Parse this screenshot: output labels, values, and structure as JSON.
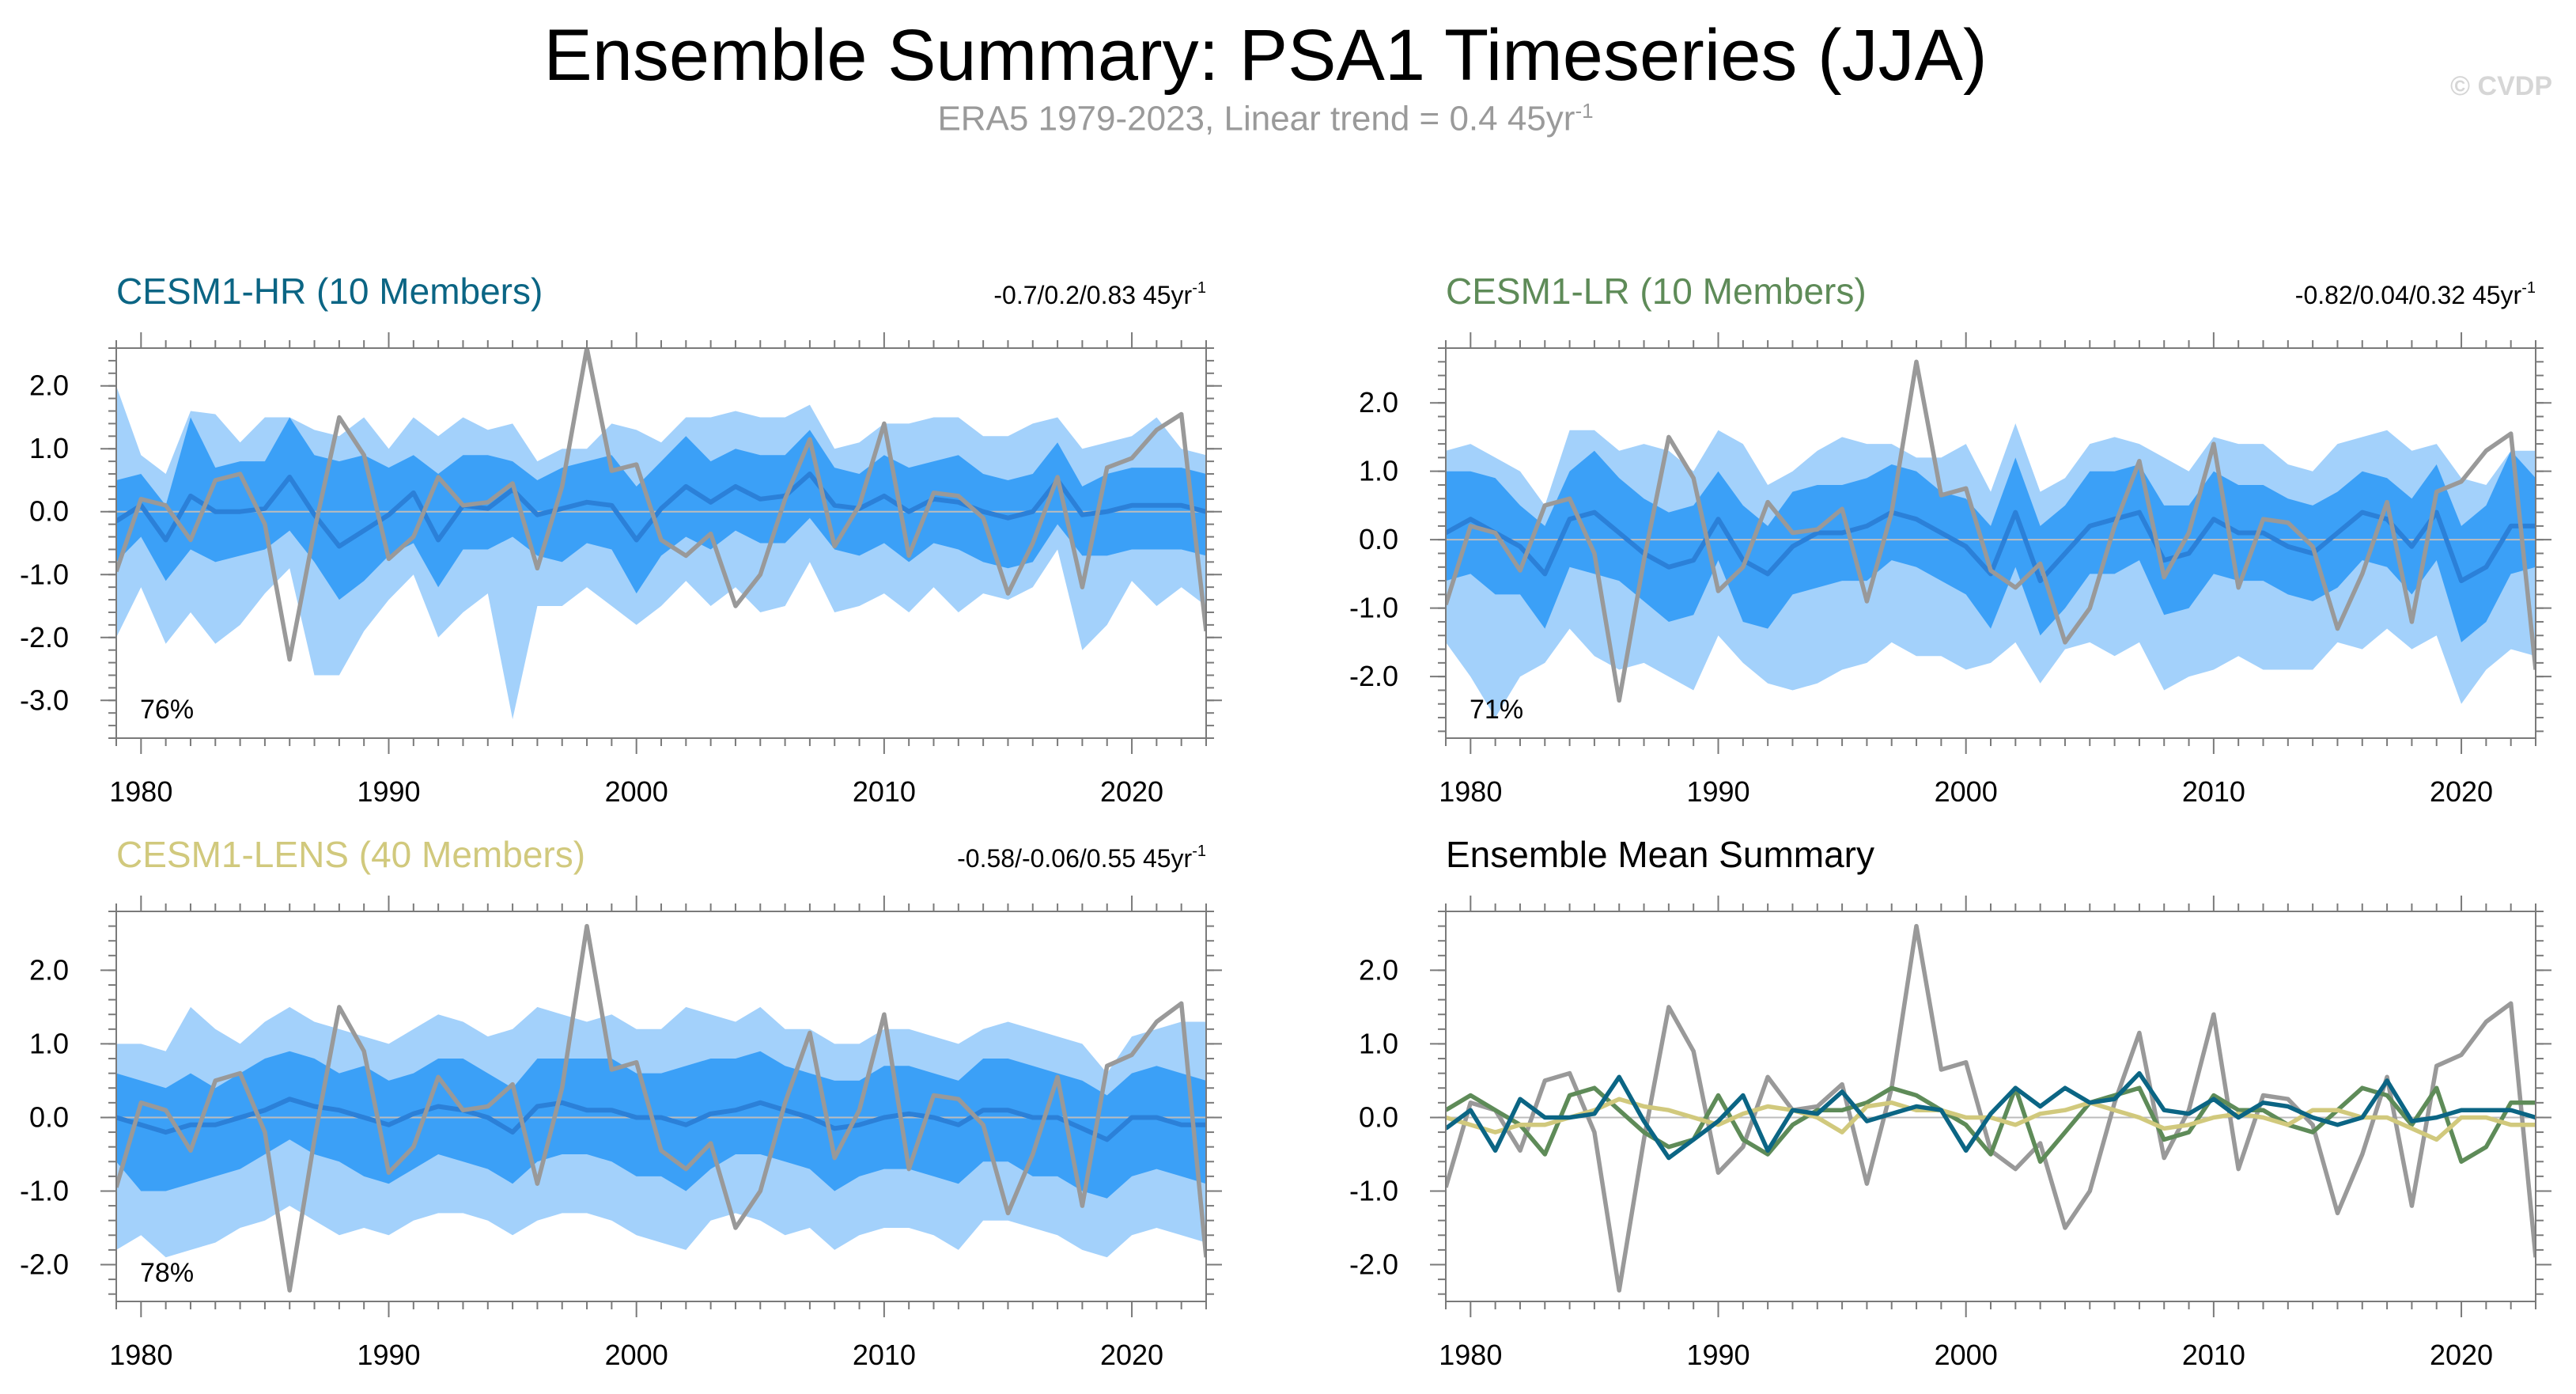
{
  "title": "Ensemble Summary: PSA1 Timeseries (JJA)",
  "subtitle": {
    "text": "ERA5 1979-2023, Linear trend = 0.4 45yr",
    "sup": "-1"
  },
  "watermark": "© CVDP",
  "colors": {
    "observations": "#999999",
    "band_outer": "#a3d1fb",
    "band_inner": "#3ba0f7",
    "ens_mean": "#2b80d8",
    "zero_line": "#bcbcbc",
    "cesm1_hr": "#0b6584",
    "cesm1_lr": "#5e8b58",
    "cesm1_lens": "#d1c97d"
  },
  "chart_data": [
    {
      "type": "area",
      "panel": "CESM1-HR",
      "title": "CESM1-HR (10 Members)",
      "title_color": "#0b6584",
      "trend_label": "-0.7/0.2/0.83 45yr",
      "trend_sup": "-1",
      "percent_label": "76%",
      "xlim": [
        1979,
        2023
      ],
      "ylim": [
        -3.6,
        2.6
      ],
      "xticks": [
        1980,
        1990,
        2000,
        2010,
        2020
      ],
      "yticks": [
        2.0,
        1.0,
        0.0,
        -1.0,
        -2.0,
        -3.0
      ],
      "ytick_labels": [
        "2.0",
        "1.0",
        "0.0",
        "-1.0",
        "-2.0",
        "-3.0"
      ],
      "x_start": 1979,
      "observations": [
        -0.95,
        0.2,
        0.1,
        -0.45,
        0.5,
        0.6,
        -0.2,
        -2.35,
        -0.3,
        1.5,
        0.9,
        -0.75,
        -0.4,
        0.55,
        0.1,
        0.15,
        0.45,
        -0.9,
        0.4,
        2.6,
        0.65,
        0.75,
        -0.45,
        -0.7,
        -0.35,
        -1.5,
        -1.0,
        0.2,
        1.15,
        -0.55,
        0.1,
        1.4,
        -0.7,
        0.3,
        0.25,
        -0.1,
        -1.3,
        -0.5,
        0.55,
        -1.2,
        0.7,
        0.85,
        1.3,
        1.55,
        -1.9
      ],
      "ens_mean": [
        -0.15,
        0.1,
        -0.45,
        0.25,
        0.0,
        0.0,
        0.05,
        0.55,
        -0.05,
        -0.55,
        -0.3,
        -0.05,
        0.3,
        -0.45,
        0.1,
        0.05,
        0.35,
        -0.05,
        0.05,
        0.15,
        0.1,
        -0.45,
        0.05,
        0.4,
        0.15,
        0.4,
        0.2,
        0.25,
        0.6,
        0.1,
        0.05,
        0.25,
        0.0,
        0.2,
        0.15,
        0.0,
        -0.1,
        0.0,
        0.5,
        -0.05,
        0.0,
        0.1,
        0.1,
        0.1,
        0.0
      ],
      "inner_upper": [
        0.5,
        0.6,
        0.1,
        1.5,
        0.7,
        0.8,
        0.8,
        1.5,
        0.9,
        0.8,
        0.9,
        0.7,
        0.9,
        0.6,
        0.9,
        0.9,
        0.8,
        0.5,
        0.7,
        0.8,
        0.9,
        0.4,
        0.8,
        1.2,
        0.8,
        1.0,
        0.9,
        0.9,
        1.3,
        0.7,
        0.6,
        0.9,
        0.7,
        0.8,
        0.9,
        0.6,
        0.5,
        0.6,
        1.1,
        0.4,
        0.6,
        0.7,
        0.7,
        0.7,
        0.6
      ],
      "inner_lower": [
        -0.8,
        -0.4,
        -1.1,
        -0.6,
        -0.8,
        -0.7,
        -0.6,
        -0.3,
        -0.8,
        -1.4,
        -1.1,
        -0.7,
        -0.5,
        -1.2,
        -0.6,
        -0.6,
        -0.4,
        -0.7,
        -0.8,
        -0.5,
        -0.6,
        -1.3,
        -0.7,
        -0.4,
        -0.6,
        -0.3,
        -0.5,
        -0.5,
        -0.1,
        -0.6,
        -0.7,
        -0.5,
        -0.8,
        -0.5,
        -0.6,
        -0.8,
        -0.9,
        -0.8,
        -0.2,
        -0.7,
        -0.7,
        -0.6,
        -0.6,
        -0.6,
        -0.7
      ],
      "outer_upper": [
        2.0,
        0.9,
        0.6,
        1.6,
        1.55,
        1.1,
        1.5,
        1.5,
        1.3,
        1.2,
        1.5,
        1.0,
        1.5,
        1.2,
        1.5,
        1.3,
        1.4,
        0.8,
        1.0,
        1.0,
        1.4,
        1.3,
        1.1,
        1.5,
        1.5,
        1.6,
        1.5,
        1.5,
        1.7,
        1.0,
        1.1,
        1.4,
        1.4,
        1.5,
        1.5,
        1.2,
        1.2,
        1.4,
        1.5,
        1.0,
        1.1,
        1.2,
        1.5,
        1.0,
        0.9
      ],
      "outer_lower": [
        -2.0,
        -1.2,
        -2.1,
        -1.6,
        -2.1,
        -1.8,
        -1.3,
        -0.9,
        -2.6,
        -2.6,
        -1.9,
        -1.4,
        -1.0,
        -2.0,
        -1.6,
        -1.3,
        -3.3,
        -1.5,
        -1.5,
        -1.2,
        -1.5,
        -1.8,
        -1.5,
        -1.1,
        -1.5,
        -1.2,
        -1.6,
        -1.5,
        -0.8,
        -1.6,
        -1.5,
        -1.3,
        -1.6,
        -1.2,
        -1.6,
        -1.3,
        -1.4,
        -1.2,
        -0.6,
        -2.2,
        -1.8,
        -1.1,
        -1.5,
        -1.2,
        -1.5
      ]
    },
    {
      "type": "area",
      "panel": "CESM1-LR",
      "title": "CESM1-LR (10 Members)",
      "title_color": "#5e8b58",
      "trend_label": "-0.82/0.04/0.32 45yr",
      "trend_sup": "-1",
      "percent_label": "71%",
      "xlim": [
        1979,
        2023
      ],
      "ylim": [
        -2.9,
        2.8
      ],
      "xticks": [
        1980,
        1990,
        2000,
        2010,
        2020
      ],
      "yticks": [
        2.0,
        1.0,
        0.0,
        -1.0,
        -2.0
      ],
      "ytick_labels": [
        "2.0",
        "1.0",
        "0.0",
        "-1.0",
        "-2.0"
      ],
      "x_start": 1979,
      "observations": [
        -0.95,
        0.2,
        0.1,
        -0.45,
        0.5,
        0.6,
        -0.2,
        -2.35,
        -0.3,
        1.5,
        0.9,
        -0.75,
        -0.4,
        0.55,
        0.1,
        0.15,
        0.45,
        -0.9,
        0.4,
        2.6,
        0.65,
        0.75,
        -0.45,
        -0.7,
        -0.35,
        -1.5,
        -1.0,
        0.2,
        1.15,
        -0.55,
        0.1,
        1.4,
        -0.7,
        0.3,
        0.25,
        -0.1,
        -1.3,
        -0.5,
        0.55,
        -1.2,
        0.7,
        0.85,
        1.3,
        1.55,
        -1.9
      ],
      "ens_mean": [
        0.1,
        0.3,
        0.1,
        -0.1,
        -0.5,
        0.3,
        0.4,
        0.1,
        -0.2,
        -0.4,
        -0.3,
        0.3,
        -0.3,
        -0.5,
        -0.1,
        0.1,
        0.1,
        0.2,
        0.4,
        0.3,
        0.1,
        -0.1,
        -0.5,
        0.4,
        -0.6,
        -0.2,
        0.2,
        0.3,
        0.4,
        -0.3,
        -0.2,
        0.3,
        0.1,
        0.1,
        -0.1,
        -0.2,
        0.1,
        0.4,
        0.3,
        -0.1,
        0.4,
        -0.6,
        -0.4,
        0.2,
        0.2
      ],
      "inner_upper": [
        1.0,
        1.0,
        0.9,
        0.5,
        0.2,
        1.0,
        1.3,
        0.9,
        0.6,
        0.4,
        0.5,
        1.0,
        0.5,
        0.2,
        0.7,
        0.8,
        0.8,
        0.9,
        1.1,
        1.0,
        0.7,
        0.6,
        0.2,
        1.2,
        0.2,
        0.5,
        1.0,
        1.0,
        1.1,
        0.5,
        0.5,
        1.0,
        0.8,
        0.8,
        0.6,
        0.5,
        0.7,
        1.0,
        0.9,
        0.6,
        1.1,
        0.2,
        0.5,
        1.3,
        0.9
      ],
      "inner_lower": [
        -0.6,
        -0.5,
        -0.8,
        -0.8,
        -1.3,
        -0.4,
        -0.5,
        -0.6,
        -0.9,
        -1.2,
        -1.1,
        -0.3,
        -1.2,
        -1.3,
        -0.8,
        -0.7,
        -0.6,
        -0.6,
        -0.3,
        -0.4,
        -0.6,
        -0.8,
        -1.3,
        -0.4,
        -1.4,
        -1.0,
        -0.5,
        -0.5,
        -0.3,
        -1.1,
        -1.0,
        -0.5,
        -0.6,
        -0.6,
        -0.8,
        -0.9,
        -0.7,
        -0.3,
        -0.4,
        -0.8,
        -0.3,
        -1.5,
        -1.2,
        -0.5,
        -0.4
      ],
      "outer_upper": [
        1.3,
        1.4,
        1.2,
        1.0,
        0.5,
        1.6,
        1.6,
        1.3,
        1.4,
        1.3,
        1.0,
        1.6,
        1.4,
        0.8,
        1.0,
        1.3,
        1.5,
        1.4,
        1.4,
        1.2,
        1.2,
        1.4,
        0.7,
        1.7,
        0.7,
        0.9,
        1.4,
        1.5,
        1.4,
        1.2,
        1.0,
        1.5,
        1.4,
        1.4,
        1.1,
        1.0,
        1.4,
        1.5,
        1.6,
        1.3,
        1.4,
        0.9,
        0.8,
        1.3,
        1.3
      ],
      "outer_lower": [
        -1.5,
        -2.0,
        -2.6,
        -2.0,
        -1.8,
        -1.3,
        -1.7,
        -1.9,
        -1.8,
        -2.0,
        -2.2,
        -1.4,
        -1.8,
        -2.1,
        -2.2,
        -2.1,
        -1.9,
        -1.8,
        -1.5,
        -1.7,
        -1.7,
        -1.9,
        -1.8,
        -1.5,
        -2.1,
        -1.6,
        -1.5,
        -1.7,
        -1.5,
        -2.2,
        -2.0,
        -1.9,
        -1.7,
        -1.9,
        -1.9,
        -1.9,
        -1.5,
        -1.6,
        -1.3,
        -1.6,
        -1.4,
        -2.4,
        -1.9,
        -1.6,
        -1.7
      ]
    },
    {
      "type": "area",
      "panel": "CESM1-LENS",
      "title": "CESM1-LENS (40 Members)",
      "title_color": "#d1c97d",
      "trend_label": "-0.58/-0.06/0.55 45yr",
      "trend_sup": "-1",
      "percent_label": "78%",
      "xlim": [
        1979,
        2023
      ],
      "ylim": [
        -2.5,
        2.8
      ],
      "xticks": [
        1980,
        1990,
        2000,
        2010,
        2020
      ],
      "yticks": [
        2.0,
        1.0,
        0.0,
        -1.0,
        -2.0
      ],
      "ytick_labels": [
        "2.0",
        "1.0",
        "0.0",
        "-1.0",
        "-2.0"
      ],
      "x_start": 1979,
      "observations": [
        -0.95,
        0.2,
        0.1,
        -0.45,
        0.5,
        0.6,
        -0.2,
        -2.35,
        -0.3,
        1.5,
        0.9,
        -0.75,
        -0.4,
        0.55,
        0.1,
        0.15,
        0.45,
        -0.9,
        0.4,
        2.6,
        0.65,
        0.75,
        -0.45,
        -0.7,
        -0.35,
        -1.5,
        -1.0,
        0.2,
        1.15,
        -0.55,
        0.1,
        1.4,
        -0.7,
        0.3,
        0.25,
        -0.1,
        -1.3,
        -0.5,
        0.55,
        -1.2,
        0.7,
        0.85,
        1.3,
        1.55,
        -1.9
      ],
      "ens_mean": [
        0.0,
        -0.1,
        -0.2,
        -0.1,
        -0.1,
        0.0,
        0.1,
        0.25,
        0.15,
        0.1,
        0.0,
        -0.1,
        0.05,
        0.15,
        0.1,
        0.0,
        -0.2,
        0.15,
        0.2,
        0.1,
        0.1,
        0.0,
        0.0,
        -0.1,
        0.05,
        0.1,
        0.2,
        0.1,
        0.0,
        -0.15,
        -0.1,
        0.0,
        0.05,
        0.0,
        -0.1,
        0.1,
        0.1,
        0.0,
        0.0,
        -0.15,
        -0.3,
        0.0,
        0.0,
        -0.1,
        -0.1
      ],
      "inner_upper": [
        0.6,
        0.5,
        0.4,
        0.6,
        0.4,
        0.6,
        0.8,
        0.9,
        0.8,
        0.6,
        0.7,
        0.5,
        0.6,
        0.8,
        0.8,
        0.6,
        0.4,
        0.8,
        0.8,
        0.8,
        0.8,
        0.6,
        0.6,
        0.7,
        0.8,
        0.8,
        0.9,
        0.7,
        0.6,
        0.5,
        0.5,
        0.7,
        0.7,
        0.6,
        0.5,
        0.8,
        0.8,
        0.7,
        0.6,
        0.5,
        0.3,
        0.6,
        0.7,
        0.6,
        0.5
      ],
      "inner_lower": [
        -0.6,
        -1.0,
        -1.0,
        -0.9,
        -0.8,
        -0.7,
        -0.5,
        -0.3,
        -0.5,
        -0.6,
        -0.8,
        -0.9,
        -0.7,
        -0.5,
        -0.6,
        -0.7,
        -0.9,
        -0.6,
        -0.5,
        -0.5,
        -0.6,
        -0.8,
        -0.8,
        -1.0,
        -0.7,
        -0.5,
        -0.5,
        -0.6,
        -0.7,
        -1.0,
        -0.8,
        -0.7,
        -0.7,
        -0.8,
        -0.9,
        -0.6,
        -0.6,
        -0.8,
        -0.8,
        -1.0,
        -1.1,
        -0.8,
        -0.7,
        -0.8,
        -0.9
      ],
      "outer_upper": [
        1.0,
        1.0,
        0.9,
        1.5,
        1.2,
        1.0,
        1.3,
        1.5,
        1.3,
        1.2,
        1.1,
        1.0,
        1.2,
        1.4,
        1.3,
        1.1,
        1.2,
        1.5,
        1.4,
        1.3,
        1.4,
        1.2,
        1.2,
        1.5,
        1.4,
        1.3,
        1.5,
        1.2,
        1.2,
        1.0,
        1.0,
        1.2,
        1.2,
        1.1,
        1.0,
        1.2,
        1.3,
        1.2,
        1.1,
        1.0,
        0.6,
        1.1,
        1.2,
        1.3,
        1.3
      ],
      "outer_lower": [
        -1.8,
        -1.6,
        -1.9,
        -1.8,
        -1.7,
        -1.5,
        -1.4,
        -1.2,
        -1.4,
        -1.6,
        -1.5,
        -1.6,
        -1.4,
        -1.3,
        -1.3,
        -1.4,
        -1.6,
        -1.4,
        -1.3,
        -1.3,
        -1.4,
        -1.6,
        -1.7,
        -1.8,
        -1.4,
        -1.3,
        -1.4,
        -1.6,
        -1.5,
        -1.8,
        -1.6,
        -1.5,
        -1.5,
        -1.6,
        -1.8,
        -1.4,
        -1.4,
        -1.5,
        -1.6,
        -1.8,
        -1.9,
        -1.6,
        -1.5,
        -1.6,
        -1.7
      ]
    },
    {
      "type": "line",
      "panel": "Ensemble Mean Summary",
      "title": "Ensemble Mean Summary",
      "title_color": "#000000",
      "xlim": [
        1979,
        2023
      ],
      "ylim": [
        -2.5,
        2.8
      ],
      "xticks": [
        1980,
        1990,
        2000,
        2010,
        2020
      ],
      "yticks": [
        2.0,
        1.0,
        0.0,
        -1.0,
        -2.0
      ],
      "ytick_labels": [
        "2.0",
        "1.0",
        "0.0",
        "-1.0",
        "-2.0"
      ],
      "x_start": 1979,
      "series": [
        {
          "color": "#999999",
          "values": [
            -0.95,
            0.2,
            0.1,
            -0.45,
            0.5,
            0.6,
            -0.2,
            -2.35,
            -0.3,
            1.5,
            0.9,
            -0.75,
            -0.4,
            0.55,
            0.1,
            0.15,
            0.45,
            -0.9,
            0.4,
            2.6,
            0.65,
            0.75,
            -0.45,
            -0.7,
            -0.35,
            -1.5,
            -1.0,
            0.2,
            1.15,
            -0.55,
            0.1,
            1.4,
            -0.7,
            0.3,
            0.25,
            -0.1,
            -1.3,
            -0.5,
            0.55,
            -1.2,
            0.7,
            0.85,
            1.3,
            1.55,
            -1.9
          ]
        },
        {
          "color": "#5e8b58",
          "values": [
            0.1,
            0.3,
            0.1,
            -0.1,
            -0.5,
            0.3,
            0.4,
            0.1,
            -0.2,
            -0.4,
            -0.3,
            0.3,
            -0.3,
            -0.5,
            -0.1,
            0.1,
            0.1,
            0.2,
            0.4,
            0.3,
            0.1,
            -0.1,
            -0.5,
            0.4,
            -0.6,
            -0.2,
            0.2,
            0.3,
            0.4,
            -0.3,
            -0.2,
            0.3,
            0.1,
            0.1,
            -0.1,
            -0.2,
            0.1,
            0.4,
            0.3,
            -0.1,
            0.4,
            -0.6,
            -0.4,
            0.2,
            0.2
          ]
        },
        {
          "color": "#d1c97d",
          "values": [
            0.0,
            -0.1,
            -0.2,
            -0.1,
            -0.1,
            0.0,
            0.1,
            0.25,
            0.15,
            0.1,
            0.0,
            -0.1,
            0.05,
            0.15,
            0.1,
            0.0,
            -0.2,
            0.15,
            0.2,
            0.1,
            0.1,
            0.0,
            0.0,
            -0.1,
            0.05,
            0.1,
            0.2,
            0.1,
            0.0,
            -0.15,
            -0.1,
            0.0,
            0.05,
            0.0,
            -0.1,
            0.1,
            0.1,
            0.0,
            0.0,
            -0.15,
            -0.3,
            0.0,
            0.0,
            -0.1,
            -0.1
          ]
        },
        {
          "color": "#0b6584",
          "values": [
            -0.15,
            0.1,
            -0.45,
            0.25,
            0.0,
            0.0,
            0.05,
            0.55,
            -0.05,
            -0.55,
            -0.3,
            -0.05,
            0.3,
            -0.45,
            0.1,
            0.05,
            0.35,
            -0.05,
            0.05,
            0.15,
            0.1,
            -0.45,
            0.05,
            0.4,
            0.15,
            0.4,
            0.2,
            0.25,
            0.6,
            0.1,
            0.05,
            0.25,
            0.0,
            0.2,
            0.15,
            0.0,
            -0.1,
            0.0,
            0.5,
            -0.05,
            0.0,
            0.1,
            0.1,
            0.1,
            0.0
          ]
        }
      ]
    }
  ]
}
